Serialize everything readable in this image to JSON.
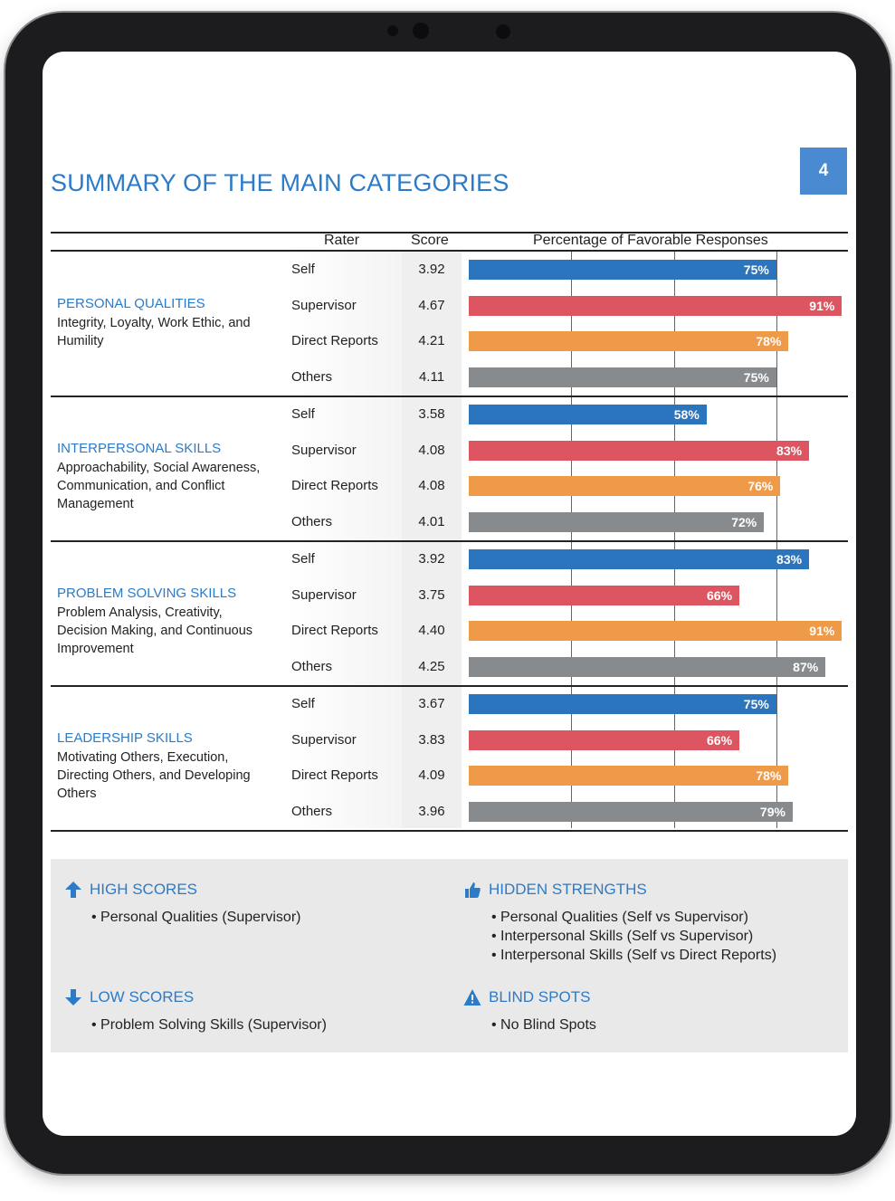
{
  "page": {
    "title": "SUMMARY OF THE MAIN CATEGORIES",
    "page_number": "4"
  },
  "table": {
    "headers": {
      "rater": "Rater",
      "score": "Score",
      "chart": "Percentage of Favorable Responses"
    }
  },
  "colors": {
    "Self": "#2b74be",
    "Supervisor": "#de5562",
    "Direct Reports": "#ee9a48",
    "Others": "#888b8e",
    "accent": "#2b7bc8"
  },
  "chart_data": {
    "type": "bar",
    "xlim": [
      0,
      100
    ],
    "grid": true,
    "categories": [
      {
        "name": "PERSONAL QUALITIES",
        "description": "Integrity, Loyalty, Work Ethic, and Humility",
        "rows": [
          {
            "rater": "Self",
            "score": "3.92",
            "value": 75,
            "label": "75%"
          },
          {
            "rater": "Supervisor",
            "score": "4.67",
            "value": 91,
            "label": "91%"
          },
          {
            "rater": "Direct Reports",
            "score": "4.21",
            "value": 78,
            "label": "78%"
          },
          {
            "rater": "Others",
            "score": "4.11",
            "value": 75,
            "label": "75%"
          }
        ]
      },
      {
        "name": "INTERPERSONAL SKILLS",
        "description": "Approachability, Social Awareness, Communication, and Conflict Management",
        "rows": [
          {
            "rater": "Self",
            "score": "3.58",
            "value": 58,
            "label": "58%"
          },
          {
            "rater": "Supervisor",
            "score": "4.08",
            "value": 83,
            "label": "83%"
          },
          {
            "rater": "Direct Reports",
            "score": "4.08",
            "value": 76,
            "label": "76%"
          },
          {
            "rater": "Others",
            "score": "4.01",
            "value": 72,
            "label": "72%"
          }
        ]
      },
      {
        "name": "PROBLEM SOLVING SKILLS",
        "description": "Problem Analysis, Creativity, Decision Making, and Continuous Improvement",
        "rows": [
          {
            "rater": "Self",
            "score": "3.92",
            "value": 83,
            "label": "83%"
          },
          {
            "rater": "Supervisor",
            "score": "3.75",
            "value": 66,
            "label": "66%"
          },
          {
            "rater": "Direct Reports",
            "score": "4.40",
            "value": 91,
            "label": "91%"
          },
          {
            "rater": "Others",
            "score": "4.25",
            "value": 87,
            "label": "87%"
          }
        ]
      },
      {
        "name": "LEADERSHIP SKILLS",
        "description": "Motivating Others, Execution, Directing Others, and Developing Others",
        "rows": [
          {
            "rater": "Self",
            "score": "3.67",
            "value": 75,
            "label": "75%"
          },
          {
            "rater": "Supervisor",
            "score": "3.83",
            "value": 66,
            "label": "66%"
          },
          {
            "rater": "Direct Reports",
            "score": "4.09",
            "value": 78,
            "label": "78%"
          },
          {
            "rater": "Others",
            "score": "3.96",
            "value": 79,
            "label": "79%"
          }
        ]
      }
    ]
  },
  "summary": {
    "high_scores": {
      "title": "HIGH SCORES",
      "icon": "arrow-up-icon",
      "items": [
        "Personal Qualities (Supervisor)"
      ]
    },
    "low_scores": {
      "title": "LOW SCORES",
      "icon": "arrow-down-icon",
      "items": [
        "Problem Solving Skills (Supervisor)"
      ]
    },
    "hidden_strengths": {
      "title": "HIDDEN STRENGTHS",
      "icon": "thumbs-up-icon",
      "items": [
        "Personal Qualities (Self vs Supervisor)",
        "Interpersonal Skills (Self vs Supervisor)",
        "Interpersonal Skills (Self vs Direct Reports)"
      ]
    },
    "blind_spots": {
      "title": "BLIND SPOTS",
      "icon": "warning-icon",
      "items": [
        "No Blind Spots"
      ]
    }
  }
}
